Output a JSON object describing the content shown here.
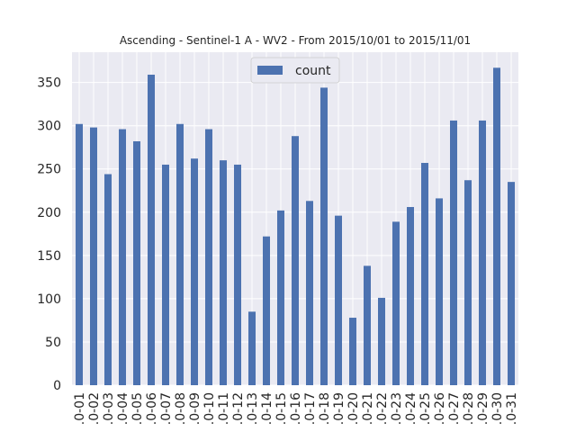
{
  "chart_data": {
    "type": "bar",
    "title": "Ascending - Sentinel-1 A - WV2 - From 2015/10/01 to 2015/11/01",
    "xlabel": "",
    "ylabel": "",
    "ylim": [
      0,
      385
    ],
    "yticks": [
      0,
      50,
      100,
      150,
      200,
      250,
      300,
      350
    ],
    "categories": [
      ".0-01",
      ".0-02",
      ".0-03",
      ".0-04",
      ".0-05",
      ".0-06",
      ".0-07",
      ".0-08",
      ".0-09",
      ".0-10",
      ".0-11",
      ".0-12",
      ".0-13",
      ".0-14",
      ".0-15",
      ".0-16",
      ".0-17",
      ".0-18",
      ".0-19",
      ".0-20",
      ".0-21",
      ".0-22",
      ".0-23",
      ".0-24",
      ".0-25",
      ".0-26",
      ".0-27",
      ".0-28",
      ".0-29",
      ".0-30",
      ".0-31"
    ],
    "series": [
      {
        "name": "count",
        "color": "#4c72b0",
        "values": [
          302,
          298,
          244,
          296,
          282,
          359,
          255,
          302,
          262,
          296,
          260,
          255,
          85,
          172,
          202,
          288,
          213,
          344,
          196,
          78,
          138,
          101,
          189,
          206,
          257,
          216,
          306,
          237,
          306,
          367,
          235
        ]
      }
    ],
    "grid": true,
    "legend": "top-center"
  },
  "colors": {
    "plot_background": "#eaeaf2",
    "grid": "#ffffff",
    "bar": "#4c72b0",
    "text": "#262626"
  }
}
